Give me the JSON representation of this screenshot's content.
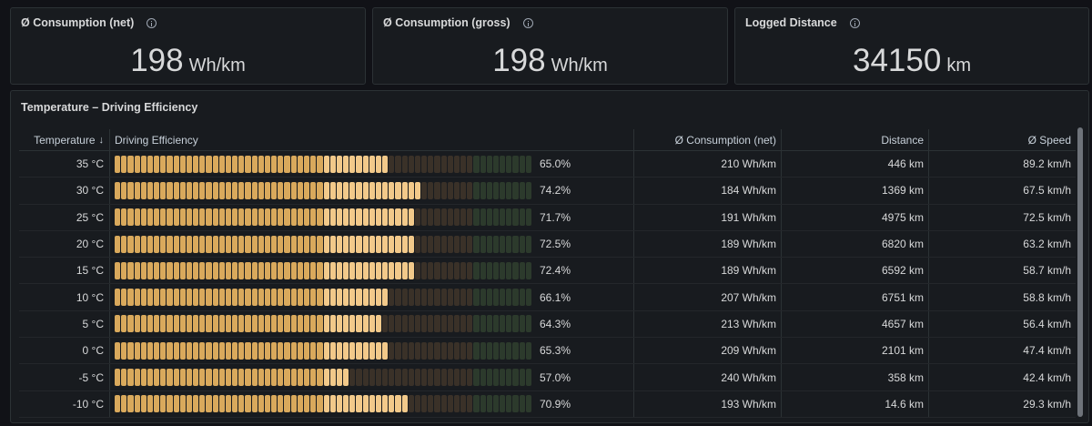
{
  "stats": [
    {
      "title": "Ø Consumption (net)",
      "value": "198",
      "unit": "Wh/km"
    },
    {
      "title": "Ø Consumption (gross)",
      "value": "198",
      "unit": "Wh/km"
    },
    {
      "title": "Logged Distance",
      "value": "34150",
      "unit": "km"
    }
  ],
  "table": {
    "title": "Temperature – Driving Efficiency",
    "columns": {
      "temperature": "Temperature",
      "sort_arrow": "↓",
      "efficiency": "Driving Efficiency",
      "consumption": "Ø Consumption (net)",
      "distance": "Distance",
      "speed": "Ø Speed"
    },
    "rows": [
      {
        "temp": "35 °C",
        "efficiency": 0.65,
        "efficiency_label": "65.0%",
        "consumption": "210 Wh/km",
        "distance": "446 km",
        "speed": "89.2 km/h"
      },
      {
        "temp": "30 °C",
        "efficiency": 0.742,
        "efficiency_label": "74.2%",
        "consumption": "184 Wh/km",
        "distance": "1369 km",
        "speed": "67.5 km/h"
      },
      {
        "temp": "25 °C",
        "efficiency": 0.717,
        "efficiency_label": "71.7%",
        "consumption": "191 Wh/km",
        "distance": "4975 km",
        "speed": "72.5 km/h"
      },
      {
        "temp": "20 °C",
        "efficiency": 0.725,
        "efficiency_label": "72.5%",
        "consumption": "189 Wh/km",
        "distance": "6820 km",
        "speed": "63.2 km/h"
      },
      {
        "temp": "15 °C",
        "efficiency": 0.724,
        "efficiency_label": "72.4%",
        "consumption": "189 Wh/km",
        "distance": "6592 km",
        "speed": "58.7 km/h"
      },
      {
        "temp": "10 °C",
        "efficiency": 0.661,
        "efficiency_label": "66.1%",
        "consumption": "207 Wh/km",
        "distance": "6751 km",
        "speed": "58.8 km/h"
      },
      {
        "temp": "5 °C",
        "efficiency": 0.643,
        "efficiency_label": "64.3%",
        "consumption": "213 Wh/km",
        "distance": "4657 km",
        "speed": "56.4 km/h"
      },
      {
        "temp": "0 °C",
        "efficiency": 0.653,
        "efficiency_label": "65.3%",
        "consumption": "209 Wh/km",
        "distance": "2101 km",
        "speed": "47.4 km/h"
      },
      {
        "temp": "-5 °C",
        "efficiency": 0.57,
        "efficiency_label": "57.0%",
        "consumption": "240 Wh/km",
        "distance": "358 km",
        "speed": "42.4 km/h"
      },
      {
        "temp": "-10 °C",
        "efficiency": 0.709,
        "efficiency_label": "70.9%",
        "consumption": "193 Wh/km",
        "distance": "14.6 km",
        "speed": "29.3 km/h"
      }
    ]
  },
  "colors": {
    "gauge_fill_start": "#d9a95c",
    "gauge_fill_end": "#f2c98a",
    "gauge_empty": "#3a3128",
    "gauge_empty_green": "#2c3a2c"
  }
}
